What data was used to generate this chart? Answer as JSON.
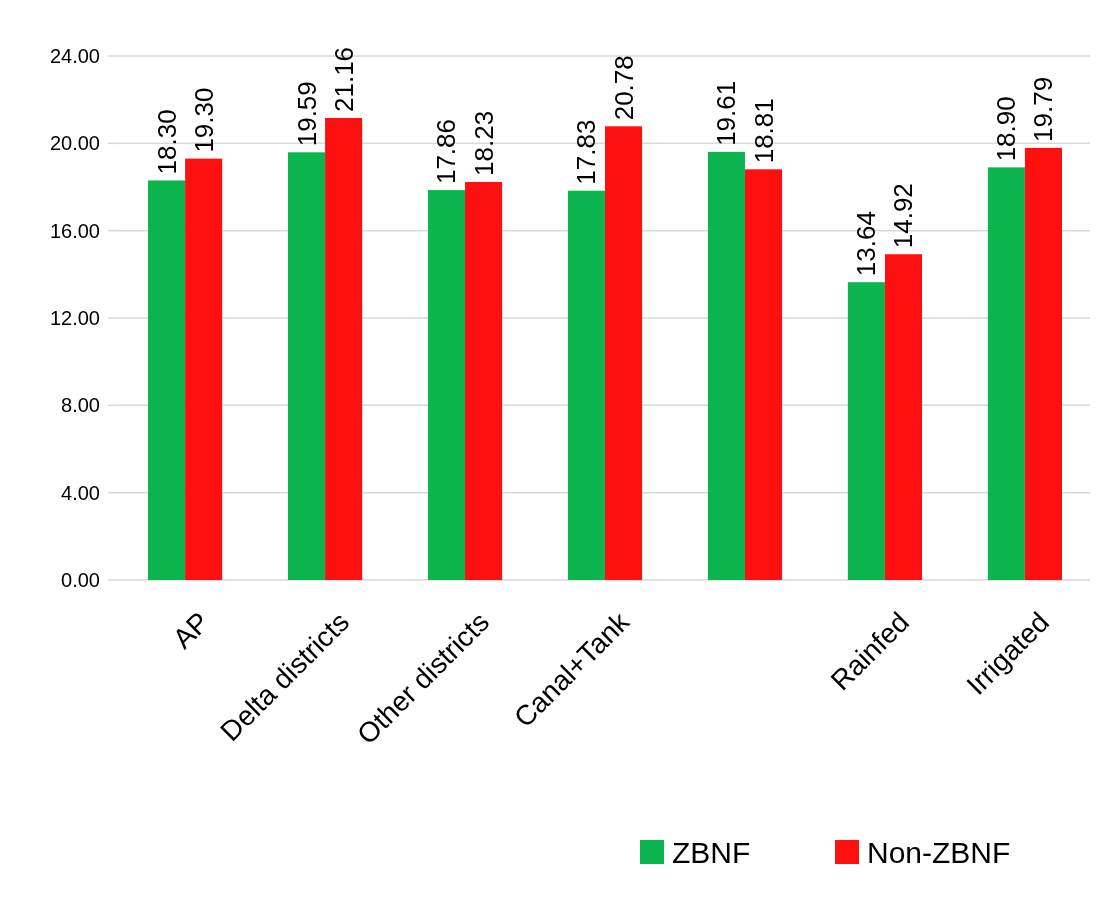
{
  "chart_data": {
    "type": "bar",
    "categories": [
      "AP",
      "Delta districts",
      "Other districts",
      "Canal+Tank",
      null,
      "Rainfed",
      "Irrigated"
    ],
    "series": [
      {
        "name": "ZBNF",
        "color": "#0db551",
        "values": [
          18.3,
          19.59,
          17.86,
          17.83,
          19.61,
          13.64,
          18.9
        ],
        "value_labels": [
          "18.30",
          "19.59",
          "17.86",
          "17.83",
          "19.61",
          "13.64",
          "18.90"
        ]
      },
      {
        "name": "Non-ZBNF",
        "color": "#ff1010",
        "values": [
          19.3,
          21.16,
          18.23,
          20.78,
          18.81,
          14.92,
          19.79
        ],
        "value_labels": [
          "19.30",
          "21.16",
          "18.23",
          "20.78",
          "18.81",
          "14.92",
          "19.79"
        ]
      }
    ],
    "ylim": [
      0,
      24
    ],
    "yticks": [
      {
        "value": 0,
        "label": "0.00"
      },
      {
        "value": 4,
        "label": "4.00"
      },
      {
        "value": 8,
        "label": "8.00"
      },
      {
        "value": 12,
        "label": "12.00"
      },
      {
        "value": 16,
        "label": "16.00"
      },
      {
        "value": 20,
        "label": "20.00"
      },
      {
        "value": 24,
        "label": "24.00"
      }
    ],
    "grid": "y",
    "legend": "bottom right"
  }
}
